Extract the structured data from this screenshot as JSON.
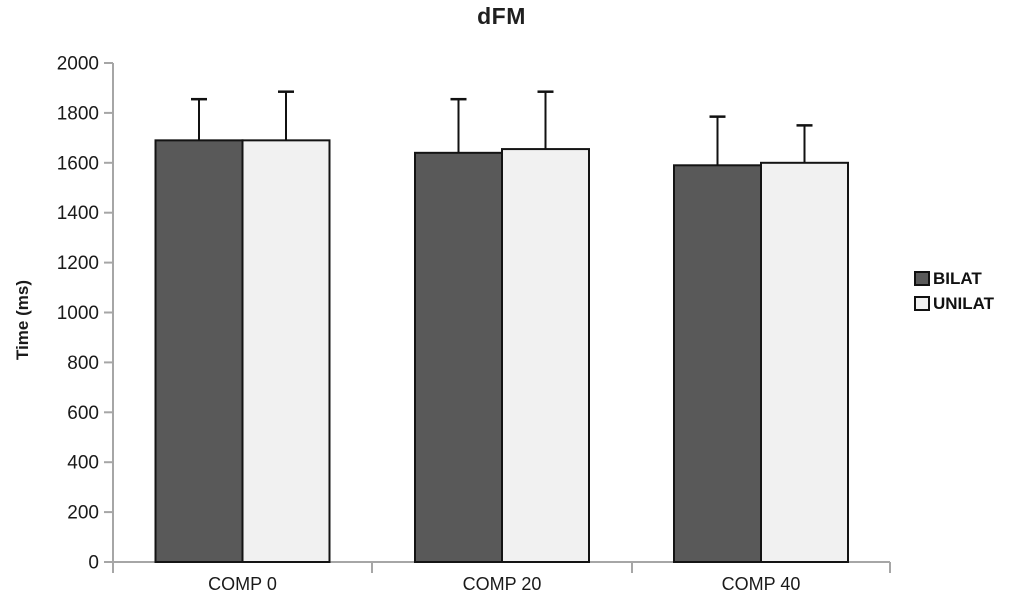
{
  "chart_data": {
    "type": "bar",
    "title": "dFM",
    "ylabel": "Time (ms)",
    "xlabel": "",
    "categories": [
      "COMP 0",
      "COMP 20",
      "COMP 40"
    ],
    "series": [
      {
        "name": "BILAT",
        "color": "#595959",
        "values": [
          1690,
          1640,
          1590
        ],
        "error_up": [
          165,
          215,
          195
        ]
      },
      {
        "name": "UNILAT",
        "color": "#f1f1f1",
        "values": [
          1690,
          1655,
          1600
        ],
        "error_up": [
          195,
          230,
          150
        ]
      }
    ],
    "ylim": [
      0,
      2000
    ],
    "yticks": [
      0,
      200,
      400,
      600,
      800,
      1000,
      1200,
      1400,
      1600,
      1800,
      2000
    ],
    "grid": false,
    "legend_position": "right",
    "error_bars": "upper-only",
    "colors": {
      "axis": "#a6a6a6",
      "bar_stroke": "#141414",
      "error": "#111111",
      "tick_text": "#1a1a1a"
    }
  }
}
